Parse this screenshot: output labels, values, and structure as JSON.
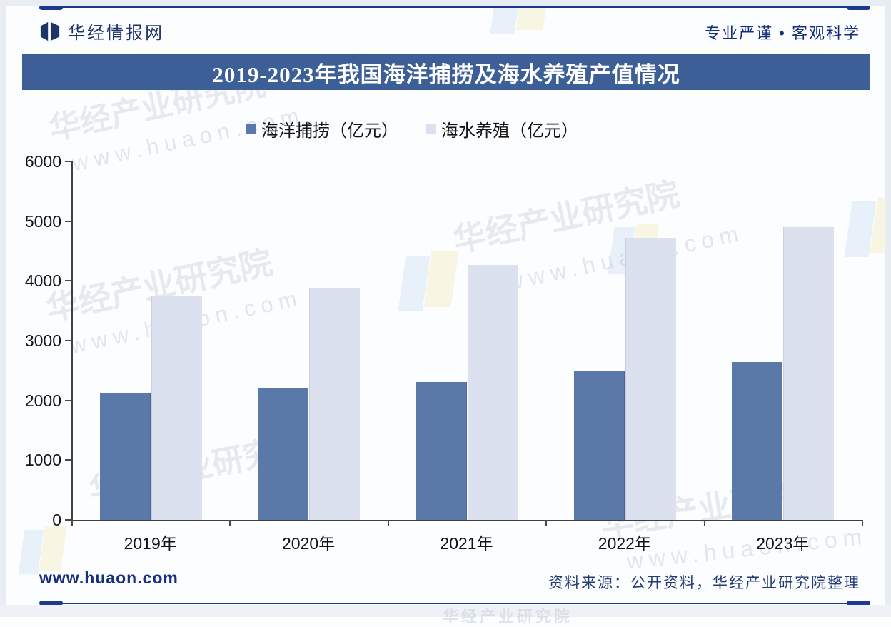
{
  "header": {
    "site_name": "华经情报网",
    "tagline": "专业严谨 • 客观科学"
  },
  "title": "2019-2023年我国海洋捕捞及海水养殖产值情况",
  "legend": [
    {
      "label": "海洋捕捞（亿元）",
      "color": "#5b79a8"
    },
    {
      "label": "海水养殖（亿元）",
      "color": "#dbe1ee"
    }
  ],
  "chart_data": {
    "type": "bar",
    "categories": [
      "2019年",
      "2020年",
      "2021年",
      "2022年",
      "2023年"
    ],
    "series": [
      {
        "name": "海洋捕捞（亿元）",
        "color": "#5b79a8",
        "values": [
          2115,
          2195,
          2305,
          2490,
          2645
        ]
      },
      {
        "name": "海水养殖（亿元）",
        "color": "#dbe1ee",
        "values": [
          3750,
          3880,
          4270,
          4720,
          4900
        ]
      }
    ],
    "title": "2019-2023年我国海洋捕捞及海水养殖产值情况",
    "xlabel": "",
    "ylabel": "",
    "ylim": [
      0,
      6000
    ],
    "ytick_interval": 1000,
    "yticks": [
      0,
      1000,
      2000,
      3000,
      4000,
      5000,
      6000
    ],
    "grid": false,
    "legend_position": "top-center"
  },
  "watermark": {
    "brand_text": "华经产业研究院",
    "url_text": "www.huaon.com"
  },
  "footer": {
    "url": "www.huaon.com",
    "source": "资料来源：公开资料，华经产业研究院整理"
  },
  "colors": {
    "accent_navy": "#1d3b8e",
    "title_bar_bg": "#3d5f98",
    "bar_dark": "#5b79a8",
    "bar_light": "#dbe1ee"
  }
}
